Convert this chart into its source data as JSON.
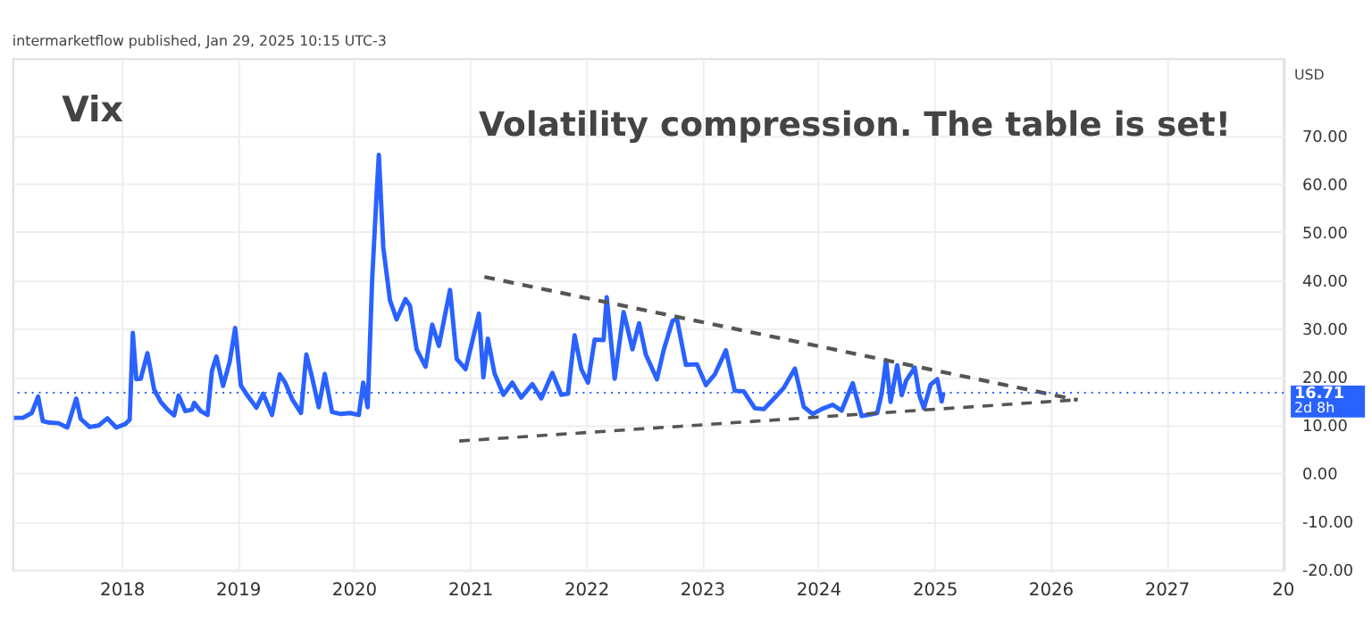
{
  "chart_data": {
    "type": "line",
    "title": "Vix",
    "subtitle": "Volatility compression. The table is set!",
    "annotations": [
      "intermarketflow published, Jan 29, 2025 10:15 UTC-3",
      "USD",
      "2d 8h"
    ],
    "xlim": [
      "2017-01-22",
      "2028-01-05"
    ],
    "xticks": [
      "2018",
      "2019",
      "2020",
      "2021",
      "2022",
      "2023",
      "2024",
      "2025",
      "2026",
      "2027",
      {
        "value": "2028",
        "label": "20"
      }
    ],
    "ylim": [
      -20,
      86
    ],
    "yticks": [
      {
        "value": -20,
        "label": "-20.00"
      },
      {
        "value": -10,
        "label": "-10.00"
      },
      {
        "value": 0,
        "label": "0.00"
      },
      {
        "value": 10,
        "label": "10.00"
      },
      {
        "value": 20,
        "label": "20.00"
      },
      {
        "value": 30,
        "label": "30.00"
      },
      {
        "value": 40,
        "label": "40.00"
      },
      {
        "value": 50,
        "label": "50.00"
      },
      {
        "value": 60,
        "label": "60.00"
      },
      {
        "value": 70,
        "label": "70.00"
      }
    ],
    "grid": true,
    "legend": false,
    "ref_lines": [
      {
        "axis": "y",
        "value": 16.71,
        "label": "16.71",
        "color": "#2962ff",
        "line_style": "dotted"
      }
    ],
    "series": [
      {
        "color": "#2962ff",
        "line_style": "solid",
        "x": [
          "2017-01-27",
          "2017-02-24",
          "2017-03-24",
          "2017-04-13",
          "2017-04-28",
          "2017-05-19",
          "2017-06-16",
          "2017-07-14",
          "2017-08-11",
          "2017-08-25",
          "2017-09-22",
          "2017-10-20",
          "2017-11-17",
          "2017-12-15",
          "2018-01-12",
          "2018-01-26",
          "2018-02-05",
          "2018-02-16",
          "2018-03-02",
          "2018-03-23",
          "2018-04-13",
          "2018-05-04",
          "2018-05-25",
          "2018-06-15",
          "2018-06-29",
          "2018-07-20",
          "2018-08-10",
          "2018-08-17",
          "2018-09-07",
          "2018-09-28",
          "2018-10-12",
          "2018-10-26",
          "2018-11-16",
          "2018-12-07",
          "2018-12-24",
          "2019-01-11",
          "2019-02-01",
          "2019-03-01",
          "2019-03-22",
          "2019-04-19",
          "2019-05-13",
          "2019-05-31",
          "2019-06-21",
          "2019-07-19",
          "2019-08-05",
          "2019-08-23",
          "2019-09-13",
          "2019-10-02",
          "2019-10-25",
          "2019-11-22",
          "2019-12-20",
          "2020-01-17",
          "2020-01-31",
          "2020-02-14",
          "2020-02-28",
          "2020-03-13",
          "2020-03-20",
          "2020-04-03",
          "2020-04-24",
          "2020-05-15",
          "2020-06-12",
          "2020-06-26",
          "2020-07-17",
          "2020-08-14",
          "2020-09-04",
          "2020-09-25",
          "2020-10-30",
          "2020-11-20",
          "2020-12-18",
          "2021-01-29",
          "2021-02-12",
          "2021-02-26",
          "2021-03-19",
          "2021-04-16",
          "2021-05-14",
          "2021-06-11",
          "2021-07-16",
          "2021-08-13",
          "2021-09-17",
          "2021-10-15",
          "2021-11-05",
          "2021-11-26",
          "2021-12-17",
          "2022-01-07",
          "2022-01-28",
          "2022-02-25",
          "2022-03-07",
          "2022-04-01",
          "2022-04-29",
          "2022-05-09",
          "2022-05-27",
          "2022-06-17",
          "2022-07-08",
          "2022-08-12",
          "2022-09-02",
          "2022-09-30",
          "2022-10-14",
          "2022-11-11",
          "2022-12-16",
          "2023-01-13",
          "2023-02-10",
          "2023-03-17",
          "2023-04-14",
          "2023-05-12",
          "2023-06-16",
          "2023-07-14",
          "2023-08-18",
          "2023-09-15",
          "2023-10-20",
          "2023-11-17",
          "2023-12-15",
          "2024-01-12",
          "2024-02-16",
          "2024-03-15",
          "2024-04-19",
          "2024-05-17",
          "2024-06-14",
          "2024-07-05",
          "2024-07-19",
          "2024-08-02",
          "2024-08-16",
          "2024-09-06",
          "2024-09-20",
          "2024-10-04",
          "2024-10-31",
          "2024-11-15",
          "2024-11-29",
          "2024-12-20",
          "2025-01-10",
          "2025-01-24",
          "2025-01-29"
        ],
        "values": [
          11.5,
          11.5,
          12.5,
          15.9,
          10.8,
          10.5,
          10.4,
          9.5,
          15.5,
          11.3,
          9.6,
          9.9,
          11.4,
          9.5,
          10.2,
          11.1,
          29.1,
          19.5,
          19.6,
          24.9,
          17.4,
          14.8,
          13.2,
          12.0,
          16.1,
          12.9,
          13.2,
          14.6,
          12.9,
          12.1,
          21.3,
          24.2,
          18.1,
          23.2,
          30.1,
          18.2,
          16.1,
          13.6,
          16.5,
          12.1,
          20.5,
          18.7,
          15.4,
          12.5,
          24.6,
          19.9,
          13.7,
          20.6,
          12.7,
          12.3,
          12.5,
          12.1,
          18.8,
          13.7,
          40.1,
          57.8,
          66.0,
          46.8,
          35.9,
          31.9,
          36.1,
          34.7,
          25.7,
          22.1,
          30.8,
          26.4,
          38.0,
          23.7,
          21.6,
          33.1,
          19.9,
          27.9,
          20.7,
          16.3,
          18.8,
          15.7,
          18.5,
          15.5,
          20.8,
          16.3,
          16.5,
          28.6,
          21.6,
          18.8,
          27.7,
          27.6,
          36.5,
          19.6,
          33.4,
          30.8,
          25.7,
          31.1,
          24.6,
          19.5,
          25.5,
          31.6,
          32.0,
          22.5,
          22.6,
          18.3,
          20.5,
          25.5,
          17.1,
          17.0,
          13.5,
          13.3,
          15.7,
          17.7,
          21.7,
          13.8,
          12.3,
          13.3,
          14.2,
          13.0,
          18.7,
          11.9,
          12.2,
          12.5,
          16.5,
          23.4,
          14.8,
          22.4,
          16.2,
          19.2,
          21.9,
          16.1,
          13.5,
          18.4,
          19.5,
          14.9,
          16.71
        ]
      },
      {
        "type": "line",
        "color": "#555555",
        "line_style": "dashed",
        "x": [
          "2021-02-15",
          "2026-03-28"
        ],
        "values": [
          40.7,
          15.2
        ]
      },
      {
        "type": "line",
        "color": "#555555",
        "line_style": "dashed",
        "x": [
          "2020-11-28",
          "2026-03-15"
        ],
        "values": [
          6.7,
          15.2
        ]
      }
    ]
  }
}
